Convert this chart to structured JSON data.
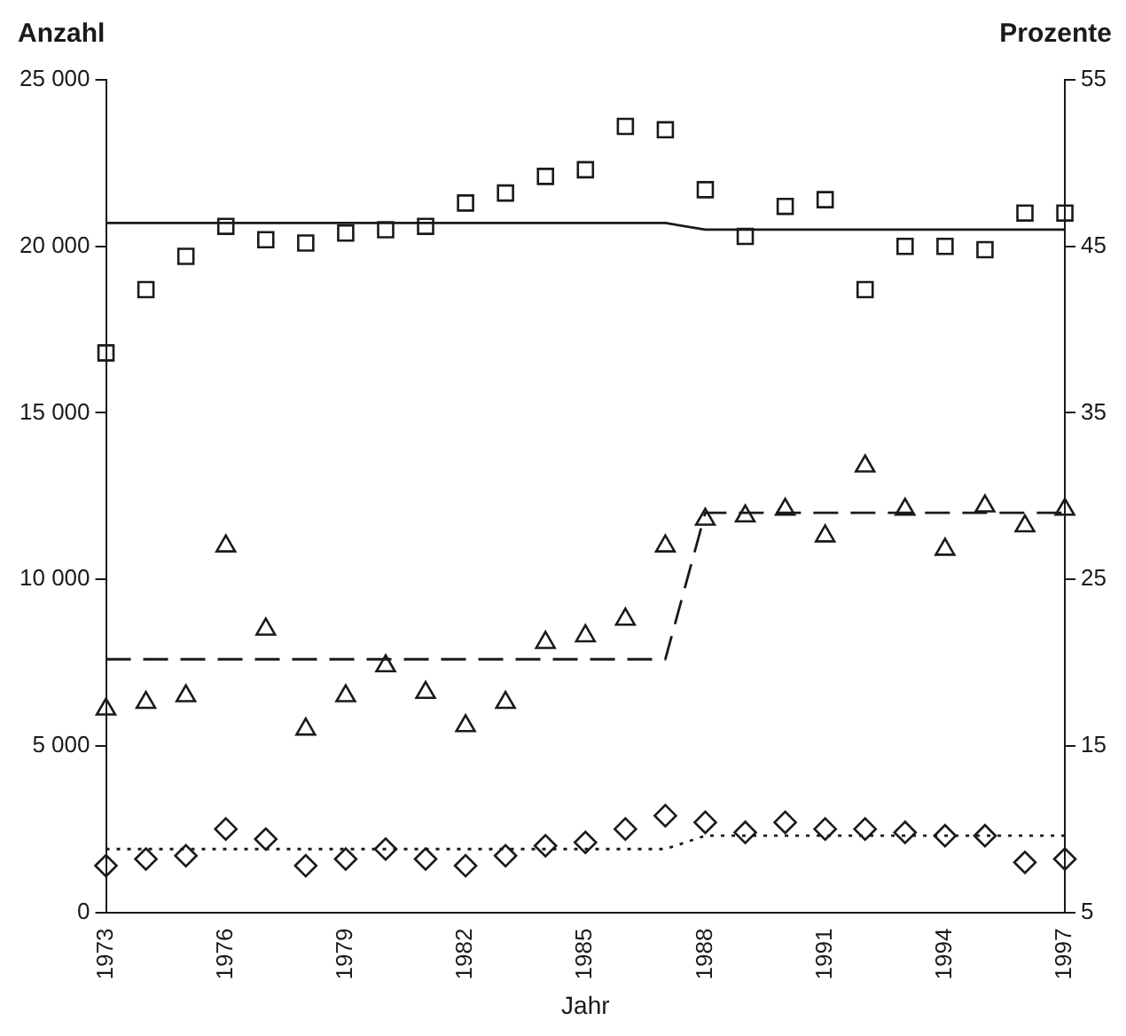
{
  "chart_data": {
    "type": "scatter",
    "xlabel": "Jahr",
    "ylabel": "Anzahl",
    "y2label": "Prozente",
    "xlim": [
      1973,
      1997
    ],
    "xticks": [
      1973,
      1976,
      1979,
      1982,
      1985,
      1988,
      1991,
      1994,
      1997
    ],
    "ylim": [
      0,
      25000
    ],
    "yticks": [
      {
        "value": 0,
        "label": "0"
      },
      {
        "value": 5000,
        "label": "5 000"
      },
      {
        "value": 10000,
        "label": "10 000"
      },
      {
        "value": 15000,
        "label": "15 000"
      },
      {
        "value": 20000,
        "label": "20 000"
      },
      {
        "value": 25000,
        "label": "25 000"
      }
    ],
    "y2lim": [
      5,
      55
    ],
    "y2ticks": [
      5,
      15,
      25,
      35,
      45,
      55
    ],
    "grid": false,
    "legend": false,
    "x": [
      1973,
      1974,
      1975,
      1976,
      1977,
      1978,
      1979,
      1980,
      1981,
      1982,
      1983,
      1984,
      1985,
      1986,
      1987,
      1988,
      1989,
      1990,
      1991,
      1992,
      1993,
      1994,
      1995,
      1996,
      1997
    ],
    "series": [
      {
        "marker": "square",
        "color": "#1a1a1a",
        "values": [
          16800,
          18700,
          19700,
          20600,
          20200,
          20100,
          20400,
          20500,
          20600,
          21300,
          21600,
          22100,
          22300,
          23600,
          23500,
          21700,
          20300,
          21200,
          21400,
          18700,
          20000,
          20000,
          19900,
          21000,
          21000
        ]
      },
      {
        "marker": "triangle",
        "color": "#1a1a1a",
        "values": [
          6100,
          6300,
          6500,
          11000,
          8500,
          5500,
          6500,
          7400,
          6600,
          5600,
          6300,
          8100,
          8300,
          8800,
          11000,
          11800,
          11900,
          12100,
          11300,
          13400,
          12100,
          10900,
          12200,
          11600,
          12100
        ]
      },
      {
        "marker": "diamond",
        "color": "#1a1a1a",
        "values": [
          1400,
          1600,
          1700,
          2500,
          2200,
          1400,
          1600,
          1900,
          1600,
          1400,
          1700,
          2000,
          2100,
          2500,
          2900,
          2700,
          2400,
          2700,
          2500,
          2500,
          2400,
          2300,
          2300,
          1500,
          1600
        ]
      },
      {
        "type": "line",
        "line_style": "solid",
        "marker": "none",
        "color": "#1a1a1a",
        "x": [
          1973,
          1987,
          1988,
          1997
        ],
        "values": [
          20700,
          20700,
          20500,
          20500
        ]
      },
      {
        "type": "line",
        "line_style": "dashed",
        "marker": "none",
        "color": "#1a1a1a",
        "x": [
          1973,
          1987,
          1988,
          1997
        ],
        "values": [
          7600,
          7600,
          12000,
          12000
        ]
      },
      {
        "type": "line",
        "line_style": "dotted",
        "marker": "none",
        "color": "#1a1a1a",
        "x": [
          1973,
          1987,
          1988,
          1997
        ],
        "values": [
          1900,
          1900,
          2300,
          2300
        ]
      }
    ]
  }
}
